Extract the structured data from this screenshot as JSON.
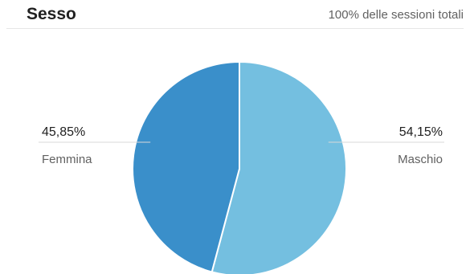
{
  "header": {
    "title": "Sesso",
    "subtitle": "100% delle sessioni totali"
  },
  "chart_data": {
    "type": "pie",
    "title": "Sesso",
    "subtitle": "100% delle sessioni totali",
    "start_angle_deg": 0,
    "direction": "clockwise",
    "slices": [
      {
        "label": "Maschio",
        "value": 54.15,
        "value_label": "54,15%",
        "color": "#74bfe0",
        "side": "right"
      },
      {
        "label": "Femmina",
        "value": 45.85,
        "value_label": "45,85%",
        "color": "#3a8fca",
        "side": "left"
      }
    ]
  }
}
